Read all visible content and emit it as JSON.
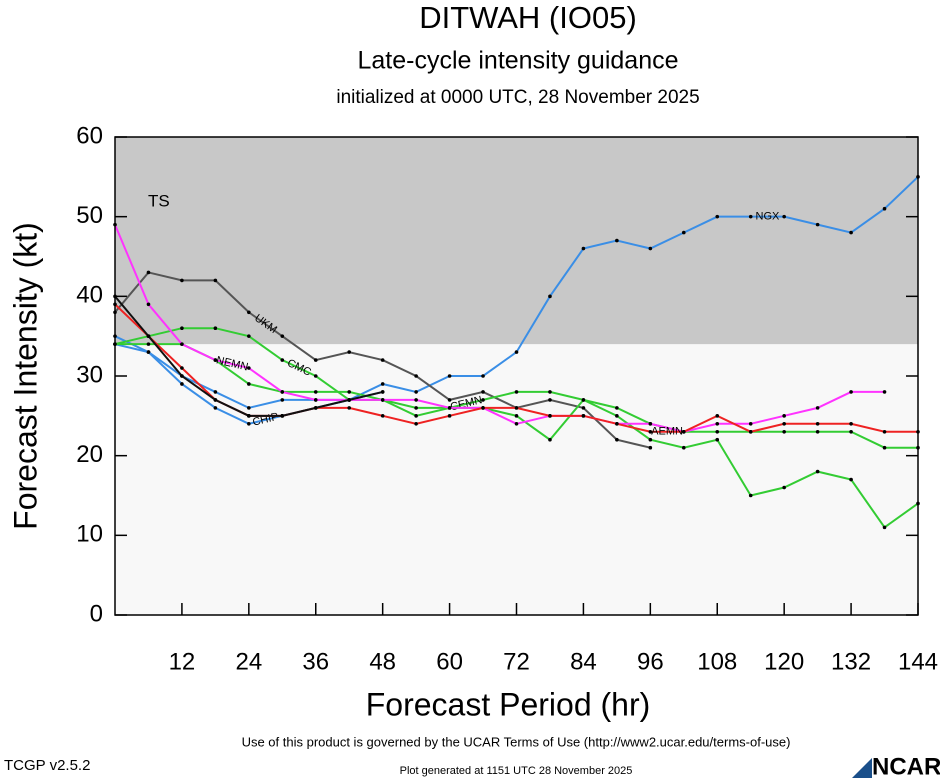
{
  "chart_data": {
    "type": "line",
    "title": "DITWAH (IO05)",
    "subtitle": "Late-cycle intensity guidance",
    "initialized": "initialized at 0000 UTC, 28 November 2025",
    "xlabel": "Forecast Period (hr)",
    "ylabel": "Forecast Intensity (kt)",
    "x": [
      0,
      6,
      12,
      18,
      24,
      30,
      36,
      42,
      48,
      54,
      60,
      66,
      72,
      78,
      84,
      90,
      96,
      102,
      108,
      114,
      120,
      126,
      132,
      138,
      144
    ],
    "xlim": [
      0,
      144
    ],
    "xticks": [
      12,
      24,
      36,
      48,
      60,
      72,
      84,
      96,
      108,
      120,
      132,
      144
    ],
    "ylim": [
      0,
      60
    ],
    "yticks": [
      0,
      10,
      20,
      30,
      40,
      50,
      60
    ],
    "bands": [
      {
        "label": "TS",
        "from": 34,
        "to": 60,
        "color": "#c8c8c8"
      }
    ],
    "series": [
      {
        "name": "NGX",
        "color": "#3a8ee6",
        "values": [
          34,
          33,
          30,
          28,
          26,
          27,
          27,
          27,
          29,
          28,
          30,
          30,
          33,
          40,
          46,
          47,
          46,
          48,
          50,
          50,
          50,
          49,
          48,
          51,
          55
        ]
      },
      {
        "name": "CHIP",
        "color": "#3a8ee6",
        "values": [
          35,
          33,
          29,
          26,
          24,
          25,
          26,
          27,
          28,
          null,
          null,
          null,
          null,
          null,
          null,
          null,
          null,
          null,
          null,
          null,
          null,
          null,
          null,
          null,
          null
        ]
      },
      {
        "name": "UKM",
        "color": "#555555",
        "values": [
          38,
          43,
          42,
          42,
          38,
          35,
          32,
          33,
          32,
          30,
          27,
          28,
          26,
          27,
          26,
          22,
          21,
          null,
          null,
          null,
          null,
          null,
          null,
          null,
          null
        ]
      },
      {
        "name": "CMC",
        "color": "#33cc33",
        "values": [
          34,
          35,
          36,
          36,
          35,
          32,
          30,
          27,
          27,
          25,
          26,
          26,
          25,
          22,
          27,
          25,
          22,
          21,
          22,
          15,
          16,
          18,
          17,
          11,
          14
        ]
      },
      {
        "name": "CEMN",
        "color": "#33cc33",
        "values": [
          34,
          34,
          34,
          32,
          29,
          28,
          28,
          28,
          27,
          26,
          26,
          27,
          28,
          28,
          27,
          26,
          24,
          23,
          23,
          23,
          23,
          23,
          23,
          21,
          21
        ]
      },
      {
        "name": "NEMN",
        "color": "#ff33ff",
        "values": [
          49,
          39,
          34,
          32,
          31,
          28,
          27,
          27,
          27,
          27,
          26,
          26,
          24,
          25,
          25,
          24,
          24,
          23,
          24,
          24,
          25,
          26,
          28,
          28,
          null
        ]
      },
      {
        "name": "AEMN",
        "color": "#ee2222",
        "values": [
          39,
          35,
          31,
          27,
          25,
          25,
          26,
          26,
          25,
          24,
          25,
          26,
          26,
          25,
          25,
          24,
          23,
          23,
          25,
          23,
          24,
          24,
          24,
          23,
          23
        ]
      },
      {
        "color": "#111111",
        "values": [
          40,
          35,
          30,
          27,
          25,
          25,
          26,
          27,
          28,
          null,
          null,
          null,
          null,
          null,
          null,
          null,
          null,
          null,
          null,
          null,
          null,
          null,
          null,
          null,
          null
        ]
      }
    ],
    "footer": "Use of this product is governed by the UCAR Terms of Use (http://www2.ucar.edu/terms-of-use)",
    "version": "TCGP v2.5.2",
    "generated": "Plot generated at 1151 UTC   28 November 2025",
    "logo": "NCAR"
  }
}
